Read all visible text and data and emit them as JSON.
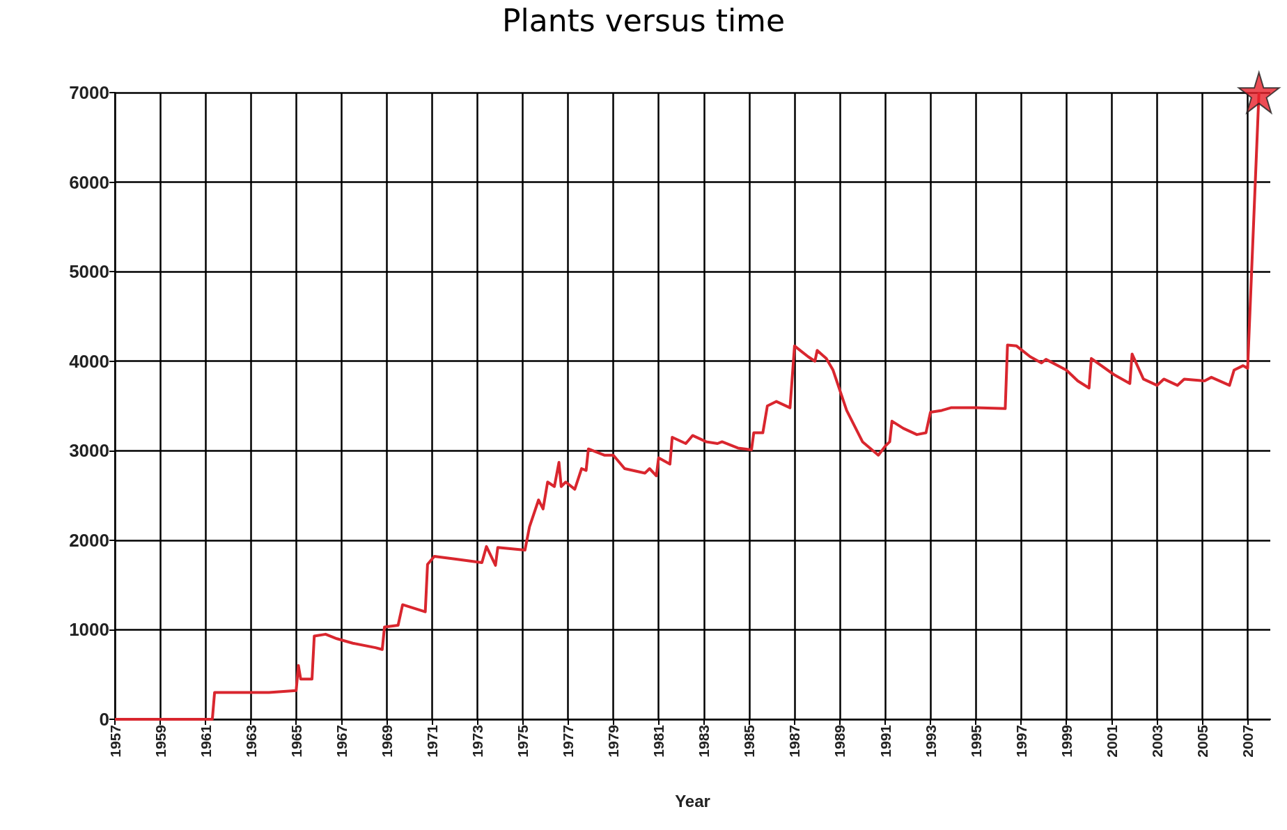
{
  "chart_data": {
    "type": "line",
    "title": "Plants versus time",
    "xlabel": "Year",
    "xlim": [
      1957,
      2008
    ],
    "xticks": [
      1957,
      1959,
      1961,
      1963,
      1965,
      1967,
      1969,
      1971,
      1973,
      1975,
      1977,
      1979,
      1981,
      1983,
      1985,
      1987,
      1989,
      1991,
      1993,
      1995,
      1997,
      1999,
      2001,
      2003,
      2005,
      2007
    ],
    "ylim": [
      0,
      7000
    ],
    "yticks": [
      0,
      1000,
      2000,
      3000,
      4000,
      5000,
      6000,
      7000
    ],
    "grid": true,
    "marker": "none",
    "series": [
      {
        "color": "#d9262e",
        "x": [
          1957,
          1961.3,
          1961.4,
          1963.8,
          1965.0,
          1965.1,
          1965.2,
          1965.7,
          1965.8,
          1966.3,
          1966.8,
          1967.5,
          1968.5,
          1968.8,
          1968.9,
          1969.5,
          1969.7,
          1970.7,
          1970.8,
          1971.1,
          1972.0,
          1973.2,
          1973.4,
          1973.8,
          1973.9,
          1975.1,
          1975.3,
          1975.7,
          1975.9,
          1976.1,
          1976.4,
          1976.6,
          1976.7,
          1976.9,
          1977.3,
          1977.6,
          1977.8,
          1977.9,
          1978.6,
          1979.0,
          1979.5,
          1980.4,
          1980.6,
          1980.9,
          1981.0,
          1981.5,
          1981.6,
          1982.2,
          1982.5,
          1983.1,
          1983.6,
          1983.8,
          1984.5,
          1985.1,
          1985.2,
          1985.6,
          1985.8,
          1986.2,
          1986.8,
          1987.0,
          1987.6,
          1987.9,
          1988.0,
          1988.4,
          1988.7,
          1989.3,
          1990.0,
          1990.7,
          1991.0,
          1991.2,
          1991.3,
          1991.8,
          1992.4,
          1992.8,
          1993.0,
          1993.5,
          1993.9,
          1995.0,
          1996.3,
          1996.4,
          1996.8,
          1997.4,
          1997.9,
          1998.1,
          1999.0,
          1999.5,
          2000.0,
          2000.1,
          2001.1,
          2001.8,
          2001.9,
          2002.4,
          2003.0,
          2003.3,
          2003.9,
          2004.2,
          2005.1,
          2005.4,
          2006.2,
          2006.4,
          2006.8,
          2007.0,
          2007.5
        ],
        "values": [
          0,
          0,
          300,
          300,
          320,
          600,
          450,
          450,
          930,
          950,
          900,
          850,
          800,
          780,
          1030,
          1050,
          1280,
          1200,
          1730,
          1820,
          1790,
          1750,
          1930,
          1720,
          1920,
          1890,
          2150,
          2450,
          2350,
          2650,
          2600,
          2870,
          2600,
          2650,
          2570,
          2800,
          2780,
          3020,
          2950,
          2950,
          2800,
          2750,
          2800,
          2720,
          2920,
          2850,
          3150,
          3080,
          3170,
          3100,
          3080,
          3100,
          3030,
          3010,
          3200,
          3200,
          3500,
          3550,
          3480,
          4170,
          4050,
          4000,
          4120,
          4030,
          3900,
          3450,
          3100,
          2950,
          3050,
          3100,
          3330,
          3250,
          3180,
          3200,
          3430,
          3450,
          3480,
          3480,
          3470,
          4180,
          4170,
          4050,
          3980,
          4020,
          3900,
          3780,
          3700,
          4030,
          3850,
          3750,
          4080,
          3800,
          3730,
          3800,
          3730,
          3800,
          3780,
          3820,
          3730,
          3900,
          3950,
          3920,
          7000
        ]
      },
      {
        "type": "scatter",
        "marker": "star",
        "color": "#e8202a",
        "x": [
          2007.5
        ],
        "values": [
          7000
        ]
      }
    ]
  }
}
